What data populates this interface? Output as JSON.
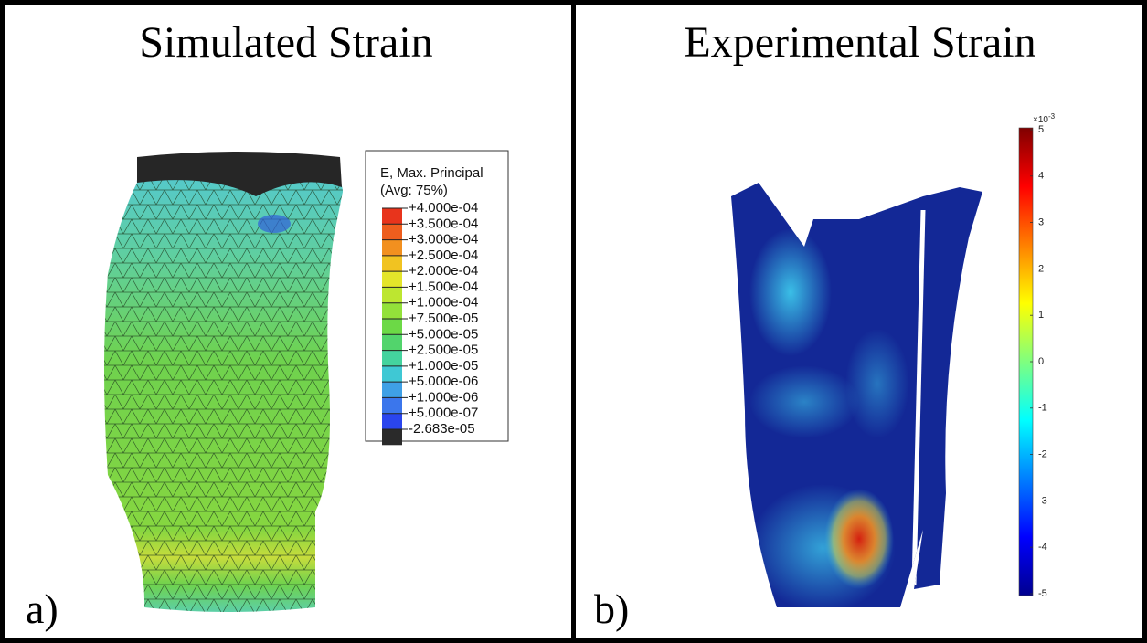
{
  "panels": [
    {
      "title": "Simulated Strain",
      "label": "a)",
      "legend": {
        "title": "E, Max. Principal",
        "subtitle": "(Avg: 75%)",
        "labels": [
          "+4.000e-04",
          "+3.500e-04",
          "+3.000e-04",
          "+2.500e-04",
          "+2.000e-04",
          "+1.500e-04",
          "+1.000e-04",
          "+7.500e-05",
          "+5.000e-05",
          "+2.500e-05",
          "+1.000e-05",
          "+5.000e-06",
          "+1.000e-06",
          "+5.000e-07",
          "-2.683e-05"
        ],
        "colors": [
          "#e8341c",
          "#ee5e1e",
          "#f2901f",
          "#f1c321",
          "#e4e52a",
          "#bde630",
          "#93e13a",
          "#6cd946",
          "#52d46c",
          "#44d39e",
          "#3fc8d4",
          "#3fa0e6",
          "#3b76ec",
          "#2a45ee",
          "#2a2a2a"
        ]
      }
    },
    {
      "title": "Experimental Strain",
      "label": "b)",
      "colorbar": {
        "multiplier": "×10",
        "exponent": "-3",
        "ticks": [
          5,
          4,
          3,
          2,
          1,
          0,
          -1,
          -2,
          -3,
          -4,
          -5
        ]
      }
    }
  ]
}
